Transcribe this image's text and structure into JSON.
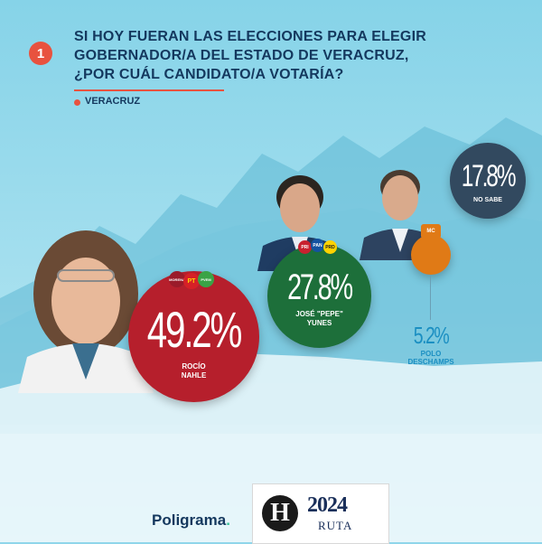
{
  "header": {
    "question_number": "1",
    "question_line1": "SI HOY FUERAN LAS ELECCIONES PARA ELEGIR",
    "question_line2": "GOBERNADOR/A DEL ESTADO DE VERACRUZ,",
    "question_line3": "¿POR CUÁL CANDIDATO/A VOTARÍA?",
    "region": "VERACRUZ"
  },
  "colors": {
    "nahle": "#b61f2c",
    "yunes": "#1d6f3a",
    "deschamps": "#e07a16",
    "no_sabe": "#32495f",
    "accent": "#e8523f",
    "navy": "#14385e"
  },
  "chart_data": {
    "type": "bubble",
    "title": "SI HOY FUERAN LAS ELECCIONES PARA ELEGIR GOBERNADOR/A DEL ESTADO DE VERACRUZ, ¿POR CUÁL CANDIDATO/A VOTARÍA?",
    "categories": [
      "ROCÍO NAHLE",
      "JOSÉ \"PEPE\" YUNES",
      "POLO DESCHAMPS",
      "NO SABE"
    ],
    "values": [
      49.2,
      27.8,
      5.2,
      17.8
    ],
    "labels": [
      "49.2%",
      "27.8%",
      "5.2%",
      "17.8%"
    ]
  },
  "candidates": [
    {
      "value_label": "49.2%",
      "name_line1": "ROCÍO",
      "name_line2": "NAHLE",
      "parties": [
        "MORENA",
        "PT",
        "PVEM"
      ]
    },
    {
      "value_label": "27.8%",
      "name_line1": "JOSÉ \"PEPE\"",
      "name_line2": "YUNES",
      "parties": [
        "PRI",
        "PAN",
        "PRD"
      ]
    },
    {
      "value_label": "5.2%",
      "name_line1": "POLO",
      "name_line2": "DESCHAMPS",
      "parties": [
        "MC"
      ]
    },
    {
      "value_label": "17.8%",
      "name_line1": "NO SABE",
      "name_line2": ""
    }
  ],
  "footer": {
    "brand": "Poligrama",
    "brand_dot": ".",
    "newspaper_mark": "H",
    "year": "2024",
    "ruta": "RUTA"
  }
}
